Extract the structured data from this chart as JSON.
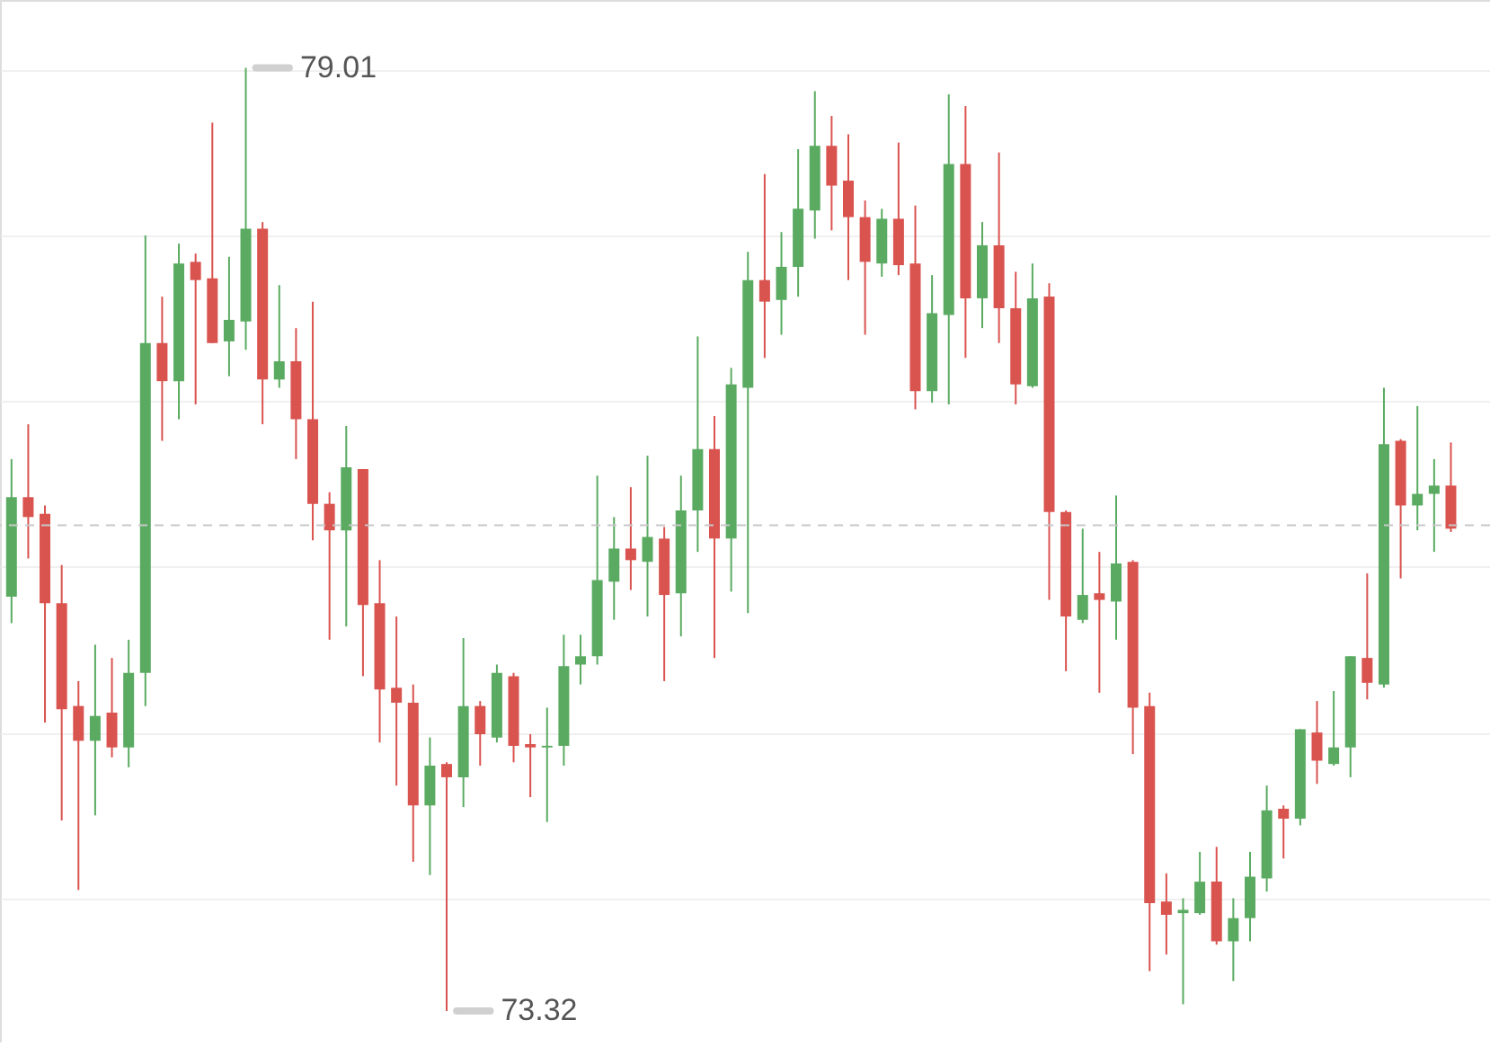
{
  "chart_data": {
    "type": "candlestick",
    "categories": [
      null,
      null,
      null,
      null,
      null,
      null,
      null,
      null,
      null,
      null,
      null,
      null,
      null,
      null,
      null,
      null,
      null,
      null,
      null,
      null,
      null,
      null,
      null,
      null,
      null,
      null,
      null,
      null,
      null,
      null,
      null,
      null,
      null,
      null,
      null,
      null,
      null,
      null,
      null,
      null,
      null,
      null,
      null,
      null,
      null,
      null,
      null,
      null,
      null,
      null,
      null,
      null,
      null,
      null,
      null,
      null,
      null,
      null,
      null,
      null,
      null,
      null,
      null,
      null,
      null,
      null,
      null,
      null,
      null,
      null,
      null,
      null,
      null,
      null,
      null,
      null,
      null,
      null,
      null,
      null,
      null,
      null,
      null,
      null,
      null,
      null,
      null
    ],
    "ohlc": [
      [
        75.82,
        76.65,
        75.66,
        76.42
      ],
      [
        76.42,
        76.86,
        76.05,
        76.3
      ],
      [
        76.32,
        76.37,
        75.06,
        75.78
      ],
      [
        75.78,
        76.01,
        74.47,
        75.14
      ],
      [
        75.16,
        75.31,
        74.05,
        74.95
      ],
      [
        74.95,
        75.53,
        74.5,
        75.1
      ],
      [
        75.12,
        75.45,
        74.85,
        74.91
      ],
      [
        74.91,
        75.56,
        74.79,
        75.36
      ],
      [
        75.36,
        78.0,
        75.16,
        77.35
      ],
      [
        77.35,
        77.63,
        76.76,
        77.12
      ],
      [
        77.12,
        77.95,
        76.89,
        77.83
      ],
      [
        77.84,
        77.89,
        76.98,
        77.73
      ],
      [
        77.74,
        78.68,
        77.35,
        77.35
      ],
      [
        77.36,
        77.87,
        77.15,
        77.49
      ],
      [
        77.48,
        79.01,
        77.31,
        78.04
      ],
      [
        78.04,
        78.08,
        76.86,
        77.13
      ],
      [
        77.13,
        77.7,
        77.08,
        77.24
      ],
      [
        77.24,
        77.44,
        76.65,
        76.89
      ],
      [
        76.89,
        77.6,
        76.16,
        76.38
      ],
      [
        76.38,
        76.45,
        75.56,
        76.22
      ],
      [
        76.22,
        76.85,
        75.64,
        76.6
      ],
      [
        76.59,
        76.59,
        75.34,
        75.77
      ],
      [
        75.78,
        76.04,
        74.94,
        75.26
      ],
      [
        75.27,
        75.7,
        74.68,
        75.18
      ],
      [
        75.18,
        75.29,
        74.22,
        74.56
      ],
      [
        74.56,
        74.97,
        74.14,
        74.8
      ],
      [
        74.81,
        74.82,
        73.32,
        74.73
      ],
      [
        74.73,
        75.57,
        74.55,
        75.16
      ],
      [
        75.16,
        75.19,
        74.8,
        74.99
      ],
      [
        74.97,
        75.41,
        74.94,
        75.36
      ],
      [
        75.34,
        75.36,
        74.82,
        74.92
      ],
      [
        74.93,
        74.99,
        74.61,
        74.91
      ],
      [
        74.91,
        75.15,
        74.46,
        74.92
      ],
      [
        74.92,
        75.59,
        74.8,
        75.4
      ],
      [
        75.41,
        75.59,
        75.29,
        75.46
      ],
      [
        75.46,
        76.55,
        75.41,
        75.92
      ],
      [
        75.91,
        76.3,
        75.68,
        76.11
      ],
      [
        76.11,
        76.48,
        75.86,
        76.04
      ],
      [
        76.03,
        76.67,
        75.7,
        76.18
      ],
      [
        76.17,
        76.24,
        75.31,
        75.83
      ],
      [
        75.84,
        76.55,
        75.58,
        76.34
      ],
      [
        76.34,
        77.39,
        76.09,
        76.71
      ],
      [
        76.71,
        76.91,
        75.45,
        76.17
      ],
      [
        76.17,
        77.2,
        75.85,
        77.1
      ],
      [
        77.08,
        77.9,
        75.72,
        77.73
      ],
      [
        77.73,
        78.37,
        77.26,
        77.6
      ],
      [
        77.61,
        78.02,
        77.4,
        77.81
      ],
      [
        77.81,
        78.52,
        77.63,
        78.16
      ],
      [
        78.15,
        78.87,
        77.98,
        78.54
      ],
      [
        78.54,
        78.72,
        78.03,
        78.3
      ],
      [
        78.33,
        78.61,
        77.73,
        78.11
      ],
      [
        78.11,
        78.21,
        77.4,
        77.84
      ],
      [
        77.83,
        78.16,
        77.75,
        78.1
      ],
      [
        78.1,
        78.56,
        77.76,
        77.82
      ],
      [
        77.83,
        78.18,
        76.95,
        77.06
      ],
      [
        77.06,
        77.76,
        76.99,
        77.53
      ],
      [
        77.52,
        78.85,
        76.98,
        78.43
      ],
      [
        78.43,
        78.78,
        77.26,
        77.62
      ],
      [
        77.62,
        78.08,
        77.44,
        77.94
      ],
      [
        77.94,
        78.5,
        77.35,
        77.56
      ],
      [
        77.56,
        77.78,
        76.98,
        77.1
      ],
      [
        77.09,
        77.83,
        77.08,
        77.62
      ],
      [
        77.63,
        77.71,
        75.8,
        76.33
      ],
      [
        76.33,
        76.34,
        75.37,
        75.7
      ],
      [
        75.68,
        76.23,
        75.66,
        75.83
      ],
      [
        75.84,
        76.09,
        75.24,
        75.8
      ],
      [
        75.79,
        76.43,
        75.56,
        76.02
      ],
      [
        76.03,
        76.04,
        74.87,
        75.15
      ],
      [
        75.16,
        75.24,
        73.56,
        73.97
      ],
      [
        73.98,
        74.15,
        73.66,
        73.9
      ],
      [
        73.91,
        74.0,
        73.36,
        73.93
      ],
      [
        73.91,
        74.28,
        73.9,
        74.1
      ],
      [
        74.1,
        74.31,
        73.72,
        73.74
      ],
      [
        73.74,
        74.0,
        73.5,
        73.88
      ],
      [
        73.88,
        74.28,
        73.74,
        74.13
      ],
      [
        74.12,
        74.68,
        74.04,
        74.53
      ],
      [
        74.54,
        74.56,
        74.24,
        74.48
      ],
      [
        74.48,
        75.02,
        74.44,
        75.02
      ],
      [
        75.0,
        75.19,
        74.69,
        74.83
      ],
      [
        74.81,
        75.25,
        74.8,
        74.91
      ],
      [
        74.91,
        75.46,
        74.73,
        75.46
      ],
      [
        75.45,
        75.96,
        75.2,
        75.3
      ],
      [
        75.29,
        77.08,
        75.27,
        76.74
      ],
      [
        76.76,
        76.77,
        75.93,
        76.37
      ],
      [
        76.37,
        76.97,
        76.22,
        76.44
      ],
      [
        76.44,
        76.65,
        76.09,
        76.49
      ],
      [
        76.49,
        76.75,
        76.21,
        76.23
      ]
    ],
    "colors": [
      "#5aab61",
      "#d9534f",
      "#d9534f",
      "#d9534f",
      "#d9534f",
      "#5aab61",
      "#d9534f",
      "#5aab61",
      "#5aab61",
      "#d9534f",
      "#5aab61",
      "#d9534f",
      "#d9534f",
      "#5aab61",
      "#5aab61",
      "#d9534f",
      "#5aab61",
      "#d9534f",
      "#d9534f",
      "#d9534f",
      "#5aab61",
      "#d9534f",
      "#d9534f",
      "#d9534f",
      "#d9534f",
      "#5aab61",
      "#d9534f",
      "#5aab61",
      "#d9534f",
      "#5aab61",
      "#d9534f",
      "#d9534f",
      "#5aab61",
      "#5aab61",
      "#5aab61",
      "#5aab61",
      "#5aab61",
      "#d9534f",
      "#5aab61",
      "#d9534f",
      "#5aab61",
      "#5aab61",
      "#d9534f",
      "#5aab61",
      "#5aab61",
      "#d9534f",
      "#5aab61",
      "#5aab61",
      "#5aab61",
      "#d9534f",
      "#d9534f",
      "#d9534f",
      "#5aab61",
      "#d9534f",
      "#d9534f",
      "#5aab61",
      "#5aab61",
      "#d9534f",
      "#5aab61",
      "#d9534f",
      "#d9534f",
      "#5aab61",
      "#d9534f",
      "#d9534f",
      "#5aab61",
      "#d9534f",
      "#5aab61",
      "#d9534f",
      "#d9534f",
      "#d9534f",
      "#5aab61",
      "#5aab61",
      "#d9534f",
      "#5aab61",
      "#5aab61",
      "#5aab61",
      "#d9534f",
      "#5aab61",
      "#d9534f",
      "#5aab61",
      "#5aab61",
      "#d9534f",
      "#5aab61",
      "#d9534f",
      "#5aab61",
      "#5aab61",
      "#d9534f"
    ],
    "ylim": [
      73.13,
      79.42
    ],
    "yticks": [
      74,
      75,
      76,
      77,
      78,
      79
    ],
    "tick_labels": false,
    "grid": "y",
    "ref_lines": [
      {
        "axis": "y",
        "value": 76.25,
        "label": null,
        "color": "#c8c8c8",
        "line_style": "dashed"
      }
    ],
    "annotations": [
      "79.01",
      "73.32"
    ]
  }
}
